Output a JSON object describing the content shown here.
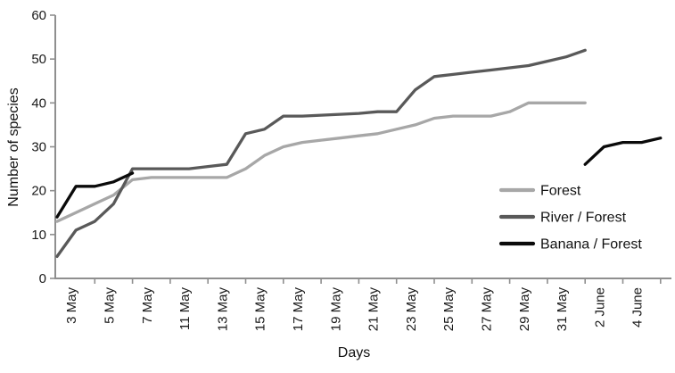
{
  "chart_data": {
    "type": "line",
    "title": "",
    "xlabel": "Days",
    "ylabel": "Number of species",
    "ylim": [
      0,
      60
    ],
    "y_ticks": [
      0,
      10,
      20,
      30,
      40,
      50,
      60
    ],
    "x_tick_labels": [
      "3 May",
      "5 May",
      "7 May",
      "11 May",
      "13 May",
      "15 May",
      "17 May",
      "19 May",
      "21 May",
      "23 May",
      "25 May",
      "27 May",
      "29 May",
      "31 May",
      "2 June",
      "4 June"
    ],
    "grid": false,
    "legend_position": "inside-lower-right",
    "axis_color": "#8f8f8f",
    "text_color": "#1a1a1a",
    "series": [
      {
        "name": "Forest",
        "color": "#a7a7a7",
        "segments": [
          {
            "start_slot": 0,
            "values": [
              13,
              15,
              17,
              19,
              22.5,
              23,
              23,
              23,
              23,
              23,
              25,
              28,
              30,
              31,
              31.5,
              32,
              32.5,
              33,
              34,
              35,
              36.5,
              37,
              37,
              37,
              38,
              40,
              40,
              40,
              40
            ]
          }
        ]
      },
      {
        "name": "River / Forest",
        "color": "#595959",
        "segments": [
          {
            "start_slot": 0,
            "values": [
              5,
              11,
              13,
              17,
              25,
              25,
              25,
              25,
              25.5,
              26,
              33,
              34,
              37,
              37,
              37.2,
              37.4,
              37.6,
              38,
              38,
              43,
              46,
              46.5,
              47,
              47.5,
              48,
              48.5,
              49.5,
              50.5,
              52
            ]
          }
        ]
      },
      {
        "name": "Banana / Forest",
        "color": "#0a0a0a",
        "segments": [
          {
            "start_slot": 0,
            "values": [
              14,
              21,
              21,
              22,
              24
            ]
          },
          {
            "start_slot": 28,
            "values": [
              26,
              30,
              31,
              31,
              32
            ]
          }
        ]
      }
    ]
  }
}
